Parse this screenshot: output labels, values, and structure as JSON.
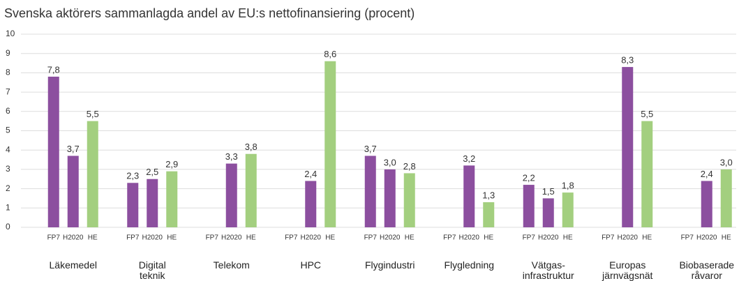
{
  "chart_data": {
    "type": "bar",
    "title": "Svenska aktörers sammanlagda andel av EU:s nettofinansiering (procent)",
    "categories": [
      "Läkemedel",
      "Digital\nteknik",
      "Telekom",
      "HPC",
      "Flygindustri",
      "Flygledning",
      "Vätgas-\ninfrastruktur",
      "Europas\njärnvägsnät",
      "Biobaserade\nråvaror"
    ],
    "series": [
      {
        "name": "FP7",
        "color": "#8c4f9f",
        "values": [
          7.8,
          2.3,
          null,
          null,
          3.7,
          null,
          2.2,
          null,
          null
        ],
        "value_labels": [
          "7,8",
          "2,3",
          null,
          null,
          "3,7",
          null,
          "2,2",
          null,
          null
        ]
      },
      {
        "name": "H2020",
        "color": "#8c4f9f",
        "values": [
          3.7,
          2.5,
          3.3,
          2.4,
          3.0,
          3.2,
          1.5,
          8.3,
          2.4
        ],
        "value_labels": [
          "3,7",
          "2,5",
          "3,3",
          "2,4",
          "3,0",
          "3,2",
          "1,5",
          "8,3",
          "2,4"
        ]
      },
      {
        "name": "HE",
        "color": "#a3cf7f",
        "values": [
          5.5,
          2.9,
          3.8,
          8.6,
          2.8,
          1.3,
          1.8,
          5.5,
          3.0
        ],
        "value_labels": [
          "5,5",
          "2,9",
          "3,8",
          "8,6",
          "2,8",
          "1,3",
          "1,8",
          "5,5",
          "3,0"
        ]
      }
    ],
    "ylim": [
      0,
      10
    ],
    "yticks": [
      0,
      1,
      2,
      3,
      4,
      5,
      6,
      7,
      8,
      9,
      10
    ],
    "grid": true
  }
}
